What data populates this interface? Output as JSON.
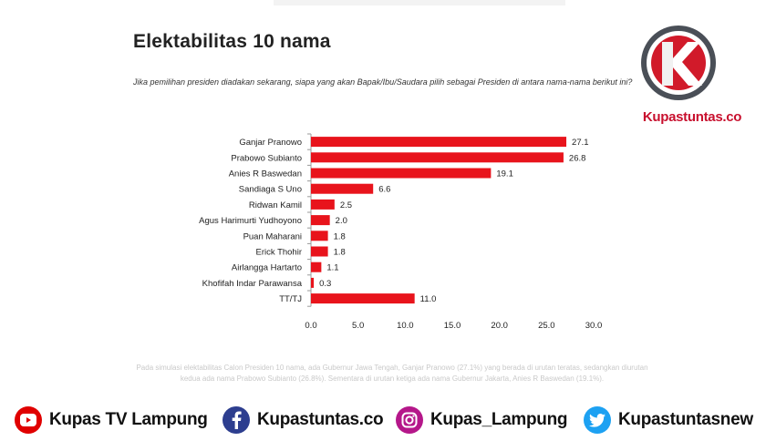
{
  "title": "Elektabilitas 10 nama",
  "question": "Jika pemilihan presiden diadakan sekarang, siapa yang akan Bapak/Ibu/Saudara pilih sebagai Presiden di antara nama-nama berikut ini?",
  "brand": {
    "name": "Kupastuntas.co",
    "color": "#c8102e"
  },
  "chart_data": {
    "type": "bar",
    "orientation": "horizontal",
    "categories": [
      "Ganjar Pranowo",
      "Prabowo Subianto",
      "Anies R Baswedan",
      "Sandiaga S Uno",
      "Ridwan Kamil",
      "Agus Harimurti Yudhoyono",
      "Puan Maharani",
      "Erick Thohir",
      "Airlangga Hartarto",
      "Khofifah Indar Parawansa",
      "TT/TJ"
    ],
    "values": [
      27.1,
      26.8,
      19.1,
      6.6,
      2.5,
      2.0,
      1.8,
      1.8,
      1.1,
      0.3,
      11.0
    ],
    "value_labels": [
      "27.1",
      "26.8",
      "19.1",
      "6.6",
      "2.5",
      "2.0",
      "1.8",
      "1.8",
      "1.1",
      "0.3",
      "11.0"
    ],
    "xlim": [
      0,
      30
    ],
    "xticks": [
      "0.0",
      "5.0",
      "10.0",
      "15.0",
      "20.0",
      "25.0",
      "30.0"
    ],
    "bar_color": "#e8141c",
    "grid": false
  },
  "footnote": "Pada simulasi elektabilitas Calon Presiden 10 nama, ada Gubernur Jawa Tengah, Ganjar Pranowo (27.1%) yang berada di urutan teratas, sedangkan diurutan kedua ada nama Prabowo Subianto (26.8%). Sementara di urutan ketiga ada nama Gubernur Jakarta, Anies R Baswedan (19.1%).",
  "socials": [
    {
      "platform": "youtube",
      "icon": "youtube-icon",
      "label": "Kupas TV Lampung",
      "color": "#e00000"
    },
    {
      "platform": "facebook",
      "icon": "facebook-icon",
      "label": "Kupastuntas.co",
      "color": "#2d3e8f"
    },
    {
      "platform": "instagram",
      "icon": "instagram-icon",
      "label": "Kupas_Lampung",
      "color": "#b5178a"
    },
    {
      "platform": "twitter",
      "icon": "twitter-icon",
      "label": "Kupastuntasnew",
      "color": "#1da1f2"
    }
  ]
}
